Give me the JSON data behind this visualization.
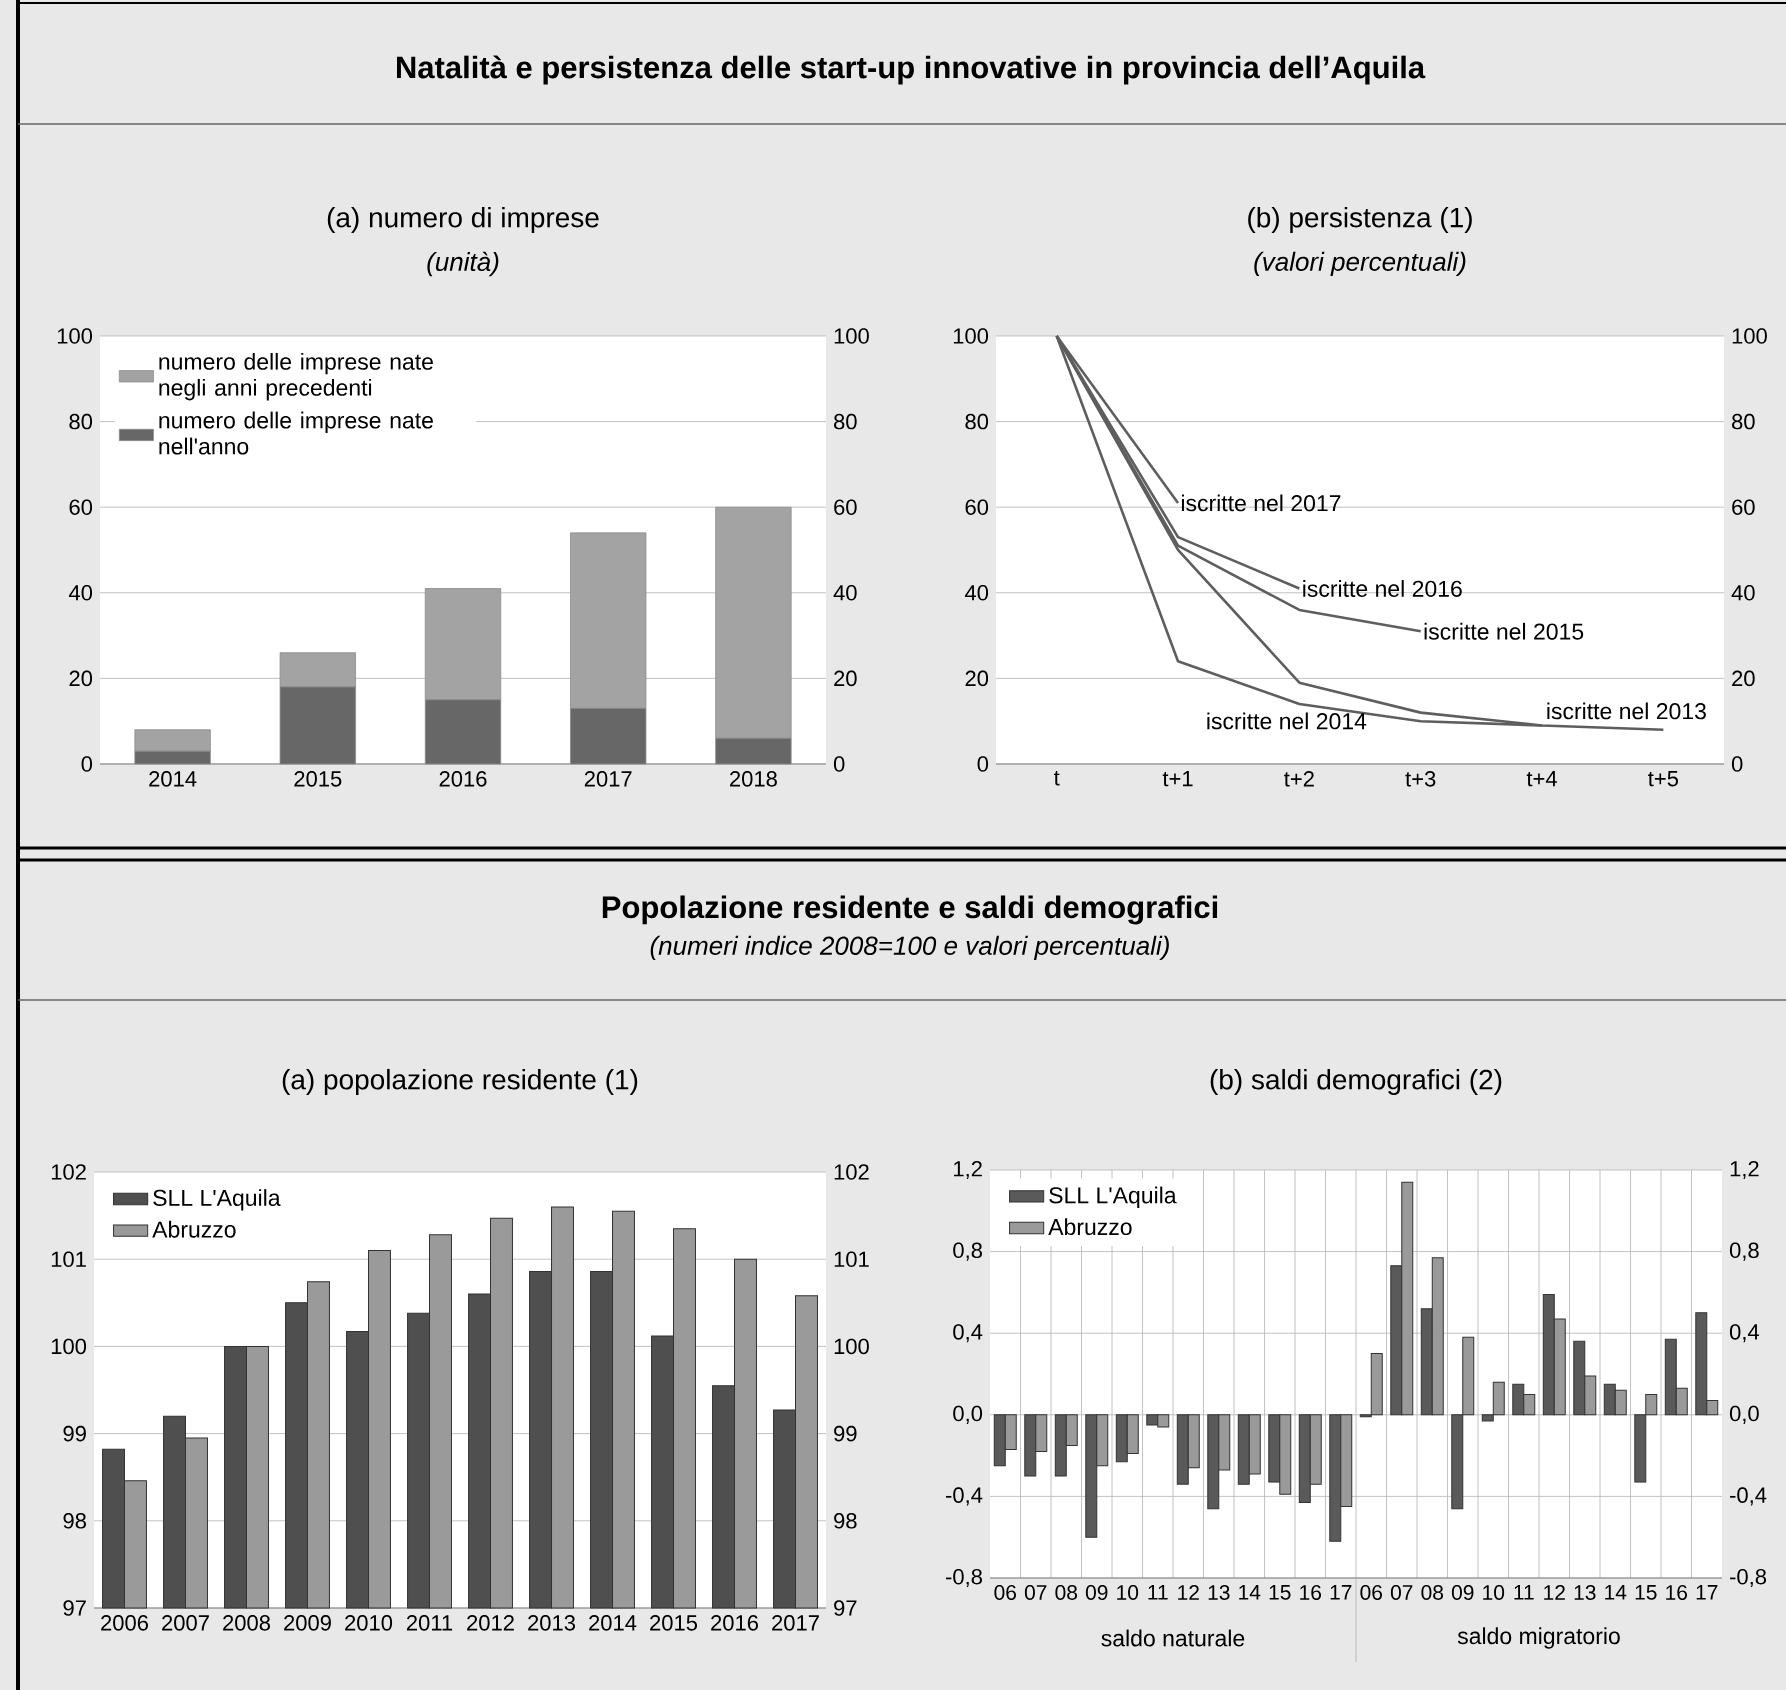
{
  "chart_data": [
    {
      "type": "bar",
      "title": "(a) numero di imprese",
      "subtitle": "(unità)",
      "annotations": [
        "Natalità e persistenza delle start-up innovative in provincia dell’Aquila"
      ],
      "categories": [
        "2014",
        "2015",
        "2016",
        "2017",
        "2018"
      ],
      "stacked": true,
      "series": [
        {
          "name": "numero delle imprese nate nell'anno",
          "color": "#676767",
          "values": [
            3,
            18,
            15,
            13,
            6
          ]
        },
        {
          "name": "numero delle imprese nate negli anni precedenti",
          "color": "#a3a3a3",
          "values": [
            5,
            8,
            26,
            41,
            54
          ]
        }
      ],
      "ylim": [
        0,
        100
      ],
      "yticks": [
        0,
        20,
        40,
        60,
        80,
        100
      ],
      "y2lim": [
        0,
        100
      ],
      "y2ticks": [
        0,
        20,
        40,
        60,
        80,
        100
      ],
      "grid": "y",
      "legend": "top left"
    },
    {
      "type": "line",
      "title": "(b) persistenza (1)",
      "subtitle": "(valori percentuali)",
      "categories": [
        "t",
        "t+1",
        "t+2",
        "t+3",
        "t+4",
        "t+5"
      ],
      "series": [
        {
          "name": "iscritte nel 2013",
          "color": "#5e5e5e",
          "values": [
            100,
            50,
            19,
            12,
            9,
            8
          ]
        },
        {
          "name": "iscritte nel 2014",
          "color": "#5e5e5e",
          "values": [
            100,
            24,
            14,
            10,
            9,
            null
          ]
        },
        {
          "name": "iscritte nel 2015",
          "color": "#5e5e5e",
          "values": [
            100,
            51,
            36,
            31,
            null,
            null
          ]
        },
        {
          "name": "iscritte nel 2016",
          "color": "#5e5e5e",
          "values": [
            100,
            53,
            41,
            null,
            null,
            null
          ]
        },
        {
          "name": "iscritte nel 2017",
          "color": "#5e5e5e",
          "values": [
            100,
            61,
            null,
            null,
            null,
            null
          ]
        }
      ],
      "ylim": [
        0,
        100
      ],
      "yticks": [
        0,
        20,
        40,
        60,
        80,
        100
      ],
      "y2lim": [
        0,
        100
      ],
      "y2ticks": [
        0,
        20,
        40,
        60,
        80,
        100
      ],
      "grid": "y"
    },
    {
      "type": "bar",
      "title": "(a) popolazione residente (1)",
      "annotations": [
        "Popolazione residente e saldi demografici",
        "(numeri indice 2008=100 e valori percentuali)"
      ],
      "categories": [
        "2006",
        "2007",
        "2008",
        "2009",
        "2010",
        "2011",
        "2012",
        "2013",
        "2014",
        "2015",
        "2016",
        "2017"
      ],
      "series": [
        {
          "name": "SLL L'Aquila",
          "color": "#4f4f4f",
          "values": [
            98.82,
            99.2,
            100,
            100.5,
            100.17,
            100.38,
            100.6,
            100.86,
            100.86,
            100.12,
            99.55,
            99.27
          ]
        },
        {
          "name": "Abruzzo",
          "color": "#9a9a9a",
          "values": [
            98.46,
            98.95,
            100,
            100.74,
            101.1,
            101.28,
            101.47,
            101.6,
            101.55,
            101.35,
            101.0,
            100.58
          ]
        }
      ],
      "ylim": [
        97,
        102
      ],
      "yticks": [
        97,
        98,
        99,
        100,
        101,
        102
      ],
      "y2lim": [
        97,
        102
      ],
      "y2ticks": [
        97,
        98,
        99,
        100,
        101,
        102
      ],
      "grid": "y",
      "legend": "top left"
    },
    {
      "type": "bar",
      "title": "(b) saldi demografici (2)",
      "annotations": [
        "saldo naturale",
        "saldo migratorio"
      ],
      "categories": [
        "06",
        "07",
        "08",
        "09",
        "10",
        "11",
        "12",
        "13",
        "14",
        "15",
        "16",
        "17",
        "06",
        "07",
        "08",
        "09",
        "10",
        "11",
        "12",
        "13",
        "14",
        "15",
        "16",
        "17"
      ],
      "series": [
        {
          "name": "SLL L'Aquila",
          "color": "#5a5a5a",
          "values": [
            -0.25,
            -0.3,
            -0.3,
            -0.6,
            -0.23,
            -0.05,
            -0.34,
            -0.46,
            -0.34,
            -0.33,
            -0.43,
            -0.62,
            -0.01,
            0.73,
            0.52,
            -0.46,
            -0.03,
            0.15,
            0.59,
            0.36,
            0.15,
            -0.33,
            0.37,
            0.5
          ]
        },
        {
          "name": "Abruzzo",
          "color": "#9a9a9a",
          "values": [
            -0.17,
            -0.18,
            -0.15,
            -0.25,
            -0.19,
            -0.06,
            -0.26,
            -0.27,
            -0.29,
            -0.39,
            -0.34,
            -0.45,
            0.3,
            1.14,
            0.77,
            0.38,
            0.16,
            0.1,
            0.47,
            0.19,
            0.12,
            0.1,
            0.13,
            0.07
          ]
        }
      ],
      "ylim": [
        -0.8,
        1.2
      ],
      "yticks": [
        {
          "value": -0.8,
          "label": "-0,8"
        },
        {
          "value": -0.4,
          "label": "-0,4"
        },
        {
          "value": 0,
          "label": "0,0"
        },
        {
          "value": 0.4,
          "label": "0,4"
        },
        {
          "value": 0.8,
          "label": "0,8"
        },
        {
          "value": 1.2,
          "label": "1,2"
        }
      ],
      "y2lim": [
        -0.8,
        1.2
      ],
      "y2ticks": [
        {
          "value": -0.8,
          "label": "-0,8"
        },
        {
          "value": -0.4,
          "label": "-0,4"
        },
        {
          "value": 0,
          "label": "0,0"
        },
        {
          "value": 0.4,
          "label": "0,4"
        },
        {
          "value": 0.8,
          "label": "0,8"
        },
        {
          "value": 1.2,
          "label": "1,2"
        }
      ],
      "grid": true,
      "legend": "top left"
    }
  ]
}
